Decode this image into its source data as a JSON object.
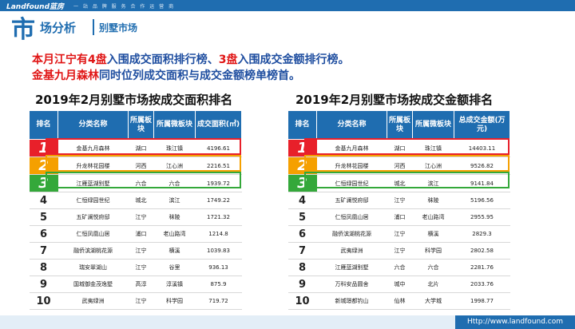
{
  "brand": {
    "logo": "Landfound蓝房",
    "slogan": "一 站 品 牌 服 务 合 作 运 营 商"
  },
  "header": {
    "big": "市",
    "mid": "场分析",
    "sub": "别墅市场"
  },
  "headline": {
    "line1": [
      {
        "t": "本月江宁有",
        "red": true
      },
      {
        "t": "4盘",
        "red": true
      },
      {
        "t": "入围成交面积排行榜、",
        "red": false
      },
      {
        "t": "3盘",
        "red": true
      },
      {
        "t": "入围成交金额排行榜。",
        "red": false
      }
    ],
    "line2": [
      {
        "t": "金基九月森林",
        "red": true
      },
      {
        "t": "同时位列成交面积与成交金额榜单榜首。",
        "red": false
      }
    ]
  },
  "colors": {
    "brand": "#1f6db0",
    "rank1": "#e8202a",
    "rank2": "#f5a000",
    "rank3": "#34a83a"
  },
  "table_area": {
    "title": "2019年2月别墅市场按成交面积排名",
    "headers": [
      "排名",
      "分类名称",
      "所属板块",
      "所属微板块",
      "成交面积(㎡)"
    ],
    "rows": [
      [
        "1",
        "金基九月森林",
        "湖口",
        "珠江镇",
        "4196.61"
      ],
      [
        "2",
        "升龙林花园楼",
        "河西",
        "江心洲",
        "2216.51"
      ],
      [
        "3",
        "江雁蓝湖别墅",
        "六合",
        "六合",
        "1939.72"
      ],
      [
        "4",
        "仁恒绿园世纪",
        "城北",
        "滨江",
        "1749.22"
      ],
      [
        "5",
        "五矿澜悦府邸",
        "江宁",
        "秣陵",
        "1721.32"
      ],
      [
        "6",
        "仁恒凤凰山居",
        "浦口",
        "老山路湾",
        "1214.8"
      ],
      [
        "7",
        "融侨滨湖桃花源",
        "江宁",
        "横溪",
        "1039.83"
      ],
      [
        "8",
        "瑞安翠湖山",
        "江宁",
        "谷里",
        "936.13"
      ],
      [
        "9",
        "国城御金茂逸墅",
        "高淳",
        "淳溪镇",
        "875.9"
      ],
      [
        "10",
        "武夷绿洲",
        "江宁",
        "科学园",
        "719.72"
      ]
    ]
  },
  "table_amount": {
    "title": "2019年2月别墅市场按成交金额排名",
    "headers": [
      "排名",
      "分类名称",
      "所属板块",
      "所属微板块",
      "总成交金额(万元)"
    ],
    "rows": [
      [
        "1",
        "金基九月森林",
        "湖口",
        "珠江镇",
        "14403.11"
      ],
      [
        "2",
        "升龙林花园楼",
        "河西",
        "江心洲",
        "9526.82"
      ],
      [
        "3",
        "仁恒绿园世纪",
        "城北",
        "滨江",
        "9141.84"
      ],
      [
        "4",
        "五矿澜悦府邸",
        "江宁",
        "秣陵",
        "5196.56"
      ],
      [
        "5",
        "仁恒凤凰山居",
        "浦口",
        "老山路湾",
        "2955.95"
      ],
      [
        "6",
        "融侨滨湖桃花源",
        "江宁",
        "横溪",
        "2829.3"
      ],
      [
        "7",
        "武夷绿洲",
        "江宁",
        "科学园",
        "2802.58"
      ],
      [
        "8",
        "江雁蓝湖别墅",
        "六合",
        "六合",
        "2281.76"
      ],
      [
        "9",
        "万科安品圆舍",
        "城中",
        "北片",
        "2033.76"
      ],
      [
        "10",
        "新城璟都钓山",
        "仙林",
        "大学城",
        "1998.77"
      ]
    ]
  },
  "footer": {
    "url": "Http://www.landfound.com"
  }
}
